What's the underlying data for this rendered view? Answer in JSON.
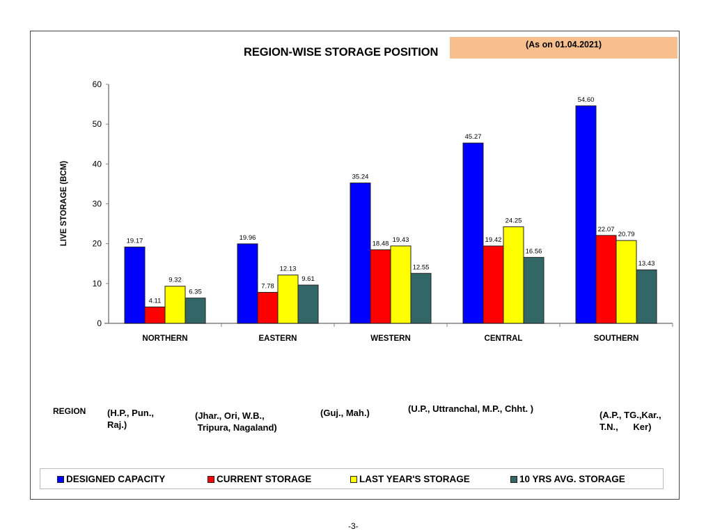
{
  "page": {
    "number_label": "-3-"
  },
  "header": {
    "title": "REGION-WISE STORAGE POSITION",
    "date_note": "(As on 01.04.2021)",
    "date_box_color": "#f8bf8e"
  },
  "regions": {
    "heading": "REGION",
    "descriptions": [
      "(H.P., Pun.,\nRaj.)",
      "(Jhar., Ori, W.B.,\n Tripura, Nagaland)",
      "(Guj., Mah.)",
      "(U.P., Uttranchal, M.P., Chht. )",
      "(A.P., TG.,Kar.,\nT.N.,      Ker)"
    ]
  },
  "legend": {
    "items": [
      {
        "label": "DESIGNED CAPACITY",
        "color": "#0000ff"
      },
      {
        "label": "CURRENT STORAGE",
        "color": "#ff0000"
      },
      {
        "label": "LAST YEAR'S STORAGE",
        "color": "#ffff00"
      },
      {
        "label": "10 YRS AVG. STORAGE",
        "color": "#336666"
      }
    ]
  },
  "chart_data": {
    "type": "bar",
    "title": "REGION-WISE STORAGE POSITION",
    "subtitle": "(As on 01.04.2021)",
    "xlabel": "",
    "ylabel": "LIVE STORAGE (BCM)",
    "ylim": [
      0,
      60
    ],
    "yticks": [
      0,
      10,
      20,
      30,
      40,
      50,
      60
    ],
    "grid": false,
    "legend_position": "bottom",
    "categories": [
      "NORTHERN",
      "EASTERN",
      "WESTERN",
      "CENTRAL",
      "SOUTHERN"
    ],
    "series": [
      {
        "name": "DESIGNED CAPACITY",
        "color": "#0000ff",
        "values": [
          19.17,
          19.96,
          35.24,
          45.27,
          54.6
        ],
        "labels": [
          "19.17",
          "19.96",
          "35.24",
          "45.27",
          "54.60"
        ]
      },
      {
        "name": "CURRENT STORAGE",
        "color": "#ff0000",
        "values": [
          4.11,
          7.78,
          18.48,
          19.42,
          22.07
        ],
        "labels": [
          "4.11",
          "7.78",
          "18.48",
          "19.42",
          "22.07"
        ]
      },
      {
        "name": "LAST YEAR'S STORAGE",
        "color": "#ffff00",
        "values": [
          9.32,
          12.13,
          19.43,
          24.25,
          20.79
        ],
        "labels": [
          "9.32",
          "12.13",
          "19.43",
          "24.25",
          "20.79"
        ]
      },
      {
        "name": "10 YRS AVG. STORAGE",
        "color": "#336666",
        "values": [
          6.35,
          9.61,
          12.55,
          16.56,
          13.43
        ],
        "labels": [
          "6.35",
          "9.61",
          "12.55",
          "16.56",
          "13.43"
        ]
      }
    ]
  }
}
